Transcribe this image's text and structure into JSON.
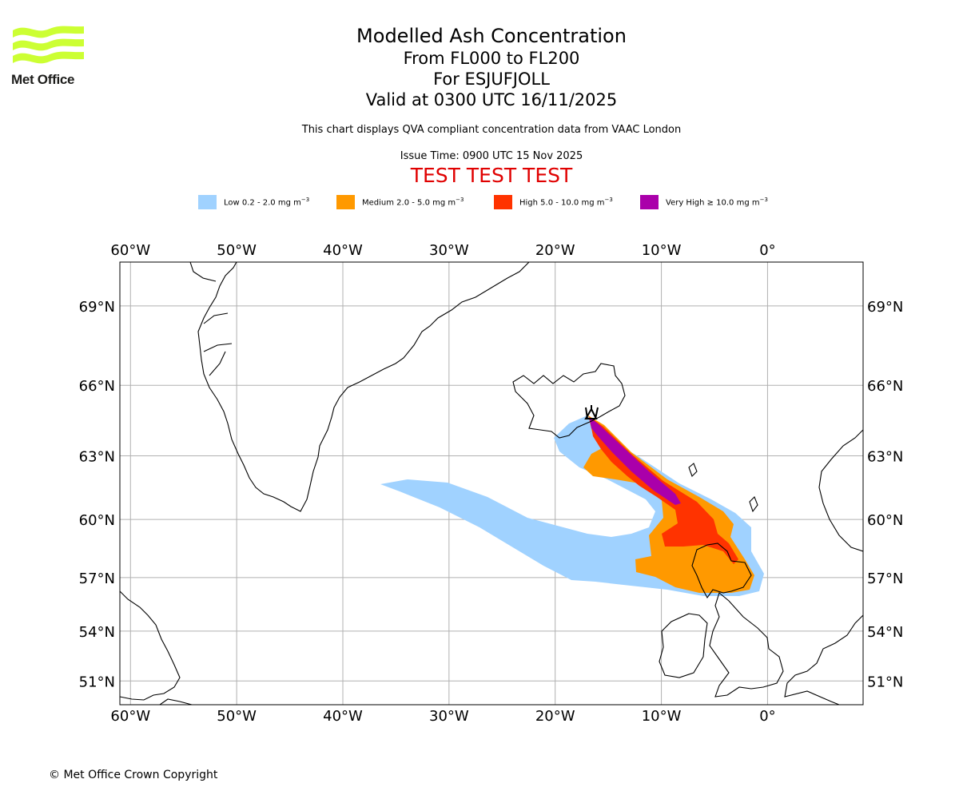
{
  "header": {
    "title": "Modelled Ash Concentration",
    "flight_levels": "From FL000 to FL200",
    "volcano": "For ESJUFJOLL",
    "valid_time": "Valid at 0300 UTC 16/11/2025",
    "description": "This chart displays QVA compliant concentration data from VAAC London",
    "issue_time": "Issue Time: 0900 UTC 15 Nov 2025",
    "test_banner": "TEST TEST TEST"
  },
  "logo": {
    "text": "Met Office",
    "color": "#ccff33"
  },
  "legend": [
    {
      "label": "Low 0.2 - 2.0 mg m",
      "unit_exp": "−3",
      "color": "#a0d2ff"
    },
    {
      "label": "Medium 2.0 - 5.0 mg m",
      "unit_exp": "−3",
      "color": "#ff9900"
    },
    {
      "label": "High 5.0 - 10.0 mg m",
      "unit_exp": "−3",
      "color": "#ff3300"
    },
    {
      "label": "Very High  ≥  10.0 mg m",
      "unit_exp": "−3",
      "color": "#aa00aa"
    }
  ],
  "map": {
    "lon_range": [
      -61,
      9
    ],
    "lat_range": [
      49.5,
      70.5
    ],
    "lon_ticks": [
      {
        "value": -60,
        "label": "60°W"
      },
      {
        "value": -50,
        "label": "50°W"
      },
      {
        "value": -40,
        "label": "40°W"
      },
      {
        "value": -30,
        "label": "30°W"
      },
      {
        "value": -20,
        "label": "20°W"
      },
      {
        "value": -10,
        "label": "10°W"
      },
      {
        "value": 0,
        "label": "0°"
      }
    ],
    "lat_ticks": [
      {
        "value": 51,
        "label": "51°N"
      },
      {
        "value": 54,
        "label": "54°N"
      },
      {
        "value": 57,
        "label": "57°N"
      },
      {
        "value": 60,
        "label": "60°N"
      },
      {
        "value": 63,
        "label": "63°N"
      },
      {
        "value": 66,
        "label": "66°N"
      },
      {
        "value": 69,
        "label": "69°N"
      }
    ],
    "volcano_symbol": "volcano-icon"
  },
  "footer": {
    "copyright": "© Met Office Crown Copyright"
  }
}
